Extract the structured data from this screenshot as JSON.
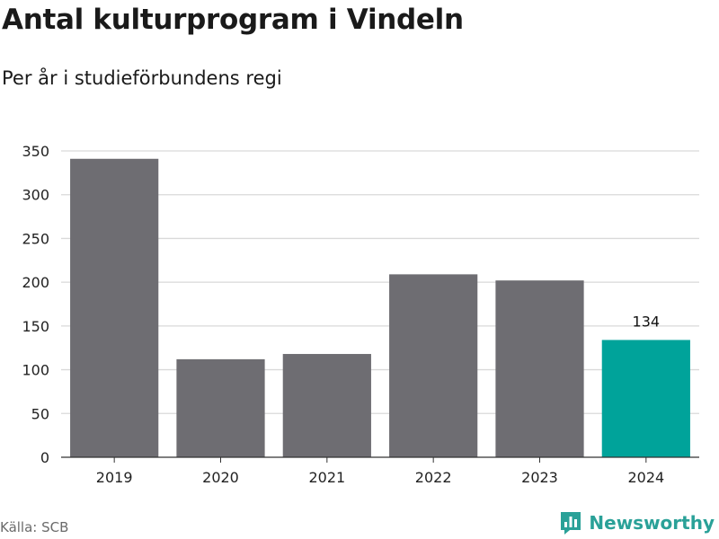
{
  "header": {
    "title": "Antal kulturprogram i Vindeln",
    "subtitle": "Per år i studieförbundens regi"
  },
  "footer": {
    "source": "Källa: SCB",
    "brand": "Newsworthy"
  },
  "colors": {
    "bar": "#6e6d72",
    "highlight": "#00a39a",
    "grid": "#d9d9d9",
    "axis": "#333333",
    "brand": "#2aa198"
  },
  "chart_data": {
    "type": "bar",
    "title": "Antal kulturprogram i Vindeln",
    "subtitle": "Per år i studieförbundens regi",
    "xlabel": "",
    "ylabel": "",
    "categories": [
      "2019",
      "2020",
      "2021",
      "2022",
      "2023",
      "2024"
    ],
    "values": [
      341,
      112,
      118,
      209,
      202,
      134
    ],
    "highlight_index": 5,
    "data_labels": [
      {
        "index": 5,
        "text": "134"
      }
    ],
    "ylim": [
      0,
      350
    ],
    "yticks": [
      0,
      50,
      100,
      150,
      200,
      250,
      300,
      350
    ],
    "grid": true,
    "legend": "none"
  }
}
